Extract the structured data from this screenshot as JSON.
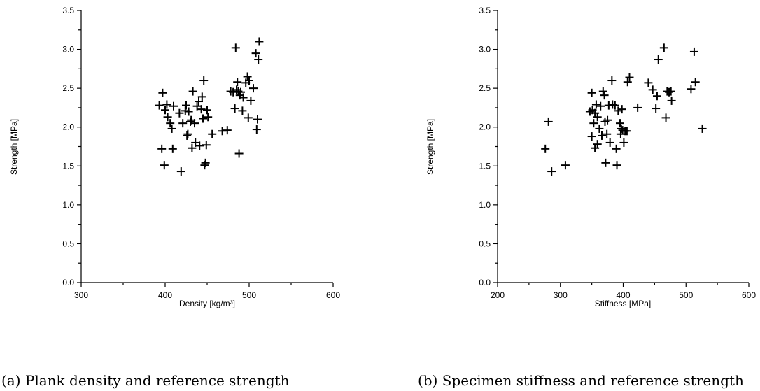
{
  "chart_data": [
    {
      "type": "scatter",
      "caption": "(a) Plank density and reference strength",
      "xlabel": "Density [kg/m³]",
      "ylabel": "Strength [MPa]",
      "xlim": [
        300,
        600
      ],
      "ylim": [
        0.0,
        3.5
      ],
      "x_ticks": [
        "300",
        "400",
        "500",
        "600"
      ],
      "y_ticks": [
        "0.0",
        "0.5",
        "1.0",
        "1.5",
        "2.0",
        "2.5",
        "3.0",
        "3.5"
      ],
      "marker": "plus",
      "grid": false,
      "points": [
        [
          393,
          2.28
        ],
        [
          397,
          2.44
        ],
        [
          396,
          1.72
        ],
        [
          399,
          1.51
        ],
        [
          400,
          2.22
        ],
        [
          402,
          2.29
        ],
        [
          403,
          2.13
        ],
        [
          406,
          2.05
        ],
        [
          408,
          1.98
        ],
        [
          409,
          1.72
        ],
        [
          410,
          2.27
        ],
        [
          417,
          2.18
        ],
        [
          419,
          1.43
        ],
        [
          421,
          2.05
        ],
        [
          424,
          2.21
        ],
        [
          425,
          2.28
        ],
        [
          426,
          1.89
        ],
        [
          427,
          1.91
        ],
        [
          428,
          2.2
        ],
        [
          430,
          2.07
        ],
        [
          431,
          2.09
        ],
        [
          432,
          1.73
        ],
        [
          433,
          2.46
        ],
        [
          435,
          2.05
        ],
        [
          436,
          1.8
        ],
        [
          438,
          2.27
        ],
        [
          440,
          2.33
        ],
        [
          441,
          1.76
        ],
        [
          443,
          2.23
        ],
        [
          444,
          2.39
        ],
        [
          445,
          2.11
        ],
        [
          446,
          2.6
        ],
        [
          447,
          1.51
        ],
        [
          448,
          1.54
        ],
        [
          450,
          2.22
        ],
        [
          449,
          1.77
        ],
        [
          451,
          2.13
        ],
        [
          456,
          1.91
        ],
        [
          468,
          1.95
        ],
        [
          474,
          1.96
        ],
        [
          478,
          2.46
        ],
        [
          481,
          2.45
        ],
        [
          483,
          2.24
        ],
        [
          484,
          3.02
        ],
        [
          485,
          2.48
        ],
        [
          486,
          2.58
        ],
        [
          487,
          2.46
        ],
        [
          488,
          1.66
        ],
        [
          489,
          2.41
        ],
        [
          490,
          2.45
        ],
        [
          492,
          2.21
        ],
        [
          493,
          2.38
        ],
        [
          496,
          2.57
        ],
        [
          498,
          2.65
        ],
        [
          499,
          2.12
        ],
        [
          500,
          2.6
        ],
        [
          502,
          2.34
        ],
        [
          505,
          2.5
        ],
        [
          508,
          2.95
        ],
        [
          509,
          1.97
        ],
        [
          510,
          2.1
        ],
        [
          511,
          2.87
        ],
        [
          512,
          3.1
        ]
      ]
    },
    {
      "type": "scatter",
      "caption": "(b) Specimen stiffness and reference strength",
      "xlabel": "Stiffness [MPa]",
      "ylabel": "Strength [MPa]",
      "xlim": [
        200,
        600
      ],
      "ylim": [
        0.0,
        3.5
      ],
      "x_ticks": [
        "200",
        "300",
        "400",
        "500",
        "600"
      ],
      "y_ticks": [
        "0.0",
        "0.5",
        "1.0",
        "1.5",
        "2.0",
        "2.5",
        "3.0",
        "3.5"
      ],
      "marker": "plus",
      "grid": false,
      "points": [
        [
          276,
          1.72
        ],
        [
          281,
          2.07
        ],
        [
          286,
          1.43
        ],
        [
          308,
          1.51
        ],
        [
          347,
          2.2
        ],
        [
          350,
          2.44
        ],
        [
          350,
          1.88
        ],
        [
          351,
          2.22
        ],
        [
          353,
          2.05
        ],
        [
          355,
          1.73
        ],
        [
          355,
          2.18
        ],
        [
          357,
          2.29
        ],
        [
          359,
          2.13
        ],
        [
          359,
          1.78
        ],
        [
          362,
          1.98
        ],
        [
          364,
          2.27
        ],
        [
          366,
          1.89
        ],
        [
          368,
          2.46
        ],
        [
          370,
          2.41
        ],
        [
          371,
          2.07
        ],
        [
          372,
          1.54
        ],
        [
          374,
          1.91
        ],
        [
          375,
          2.09
        ],
        [
          377,
          2.28
        ],
        [
          379,
          1.8
        ],
        [
          382,
          2.6
        ],
        [
          383,
          2.29
        ],
        [
          387,
          2.28
        ],
        [
          389,
          1.72
        ],
        [
          390,
          1.51
        ],
        [
          392,
          2.21
        ],
        [
          395,
          2.05
        ],
        [
          396,
          1.91
        ],
        [
          397,
          1.98
        ],
        [
          398,
          2.23
        ],
        [
          399,
          1.96
        ],
        [
          401,
          1.8
        ],
        [
          403,
          1.95
        ],
        [
          406,
          1.95
        ],
        [
          407,
          2.58
        ],
        [
          410,
          2.64
        ],
        [
          423,
          2.25
        ],
        [
          440,
          2.57
        ],
        [
          447,
          2.48
        ],
        [
          452,
          2.24
        ],
        [
          454,
          2.4
        ],
        [
          456,
          2.87
        ],
        [
          465,
          3.02
        ],
        [
          468,
          2.12
        ],
        [
          470,
          2.46
        ],
        [
          473,
          2.45
        ],
        [
          476,
          2.46
        ],
        [
          477,
          2.34
        ],
        [
          508,
          2.49
        ],
        [
          513,
          2.97
        ],
        [
          515,
          2.58
        ],
        [
          526,
          1.98
        ]
      ]
    }
  ]
}
